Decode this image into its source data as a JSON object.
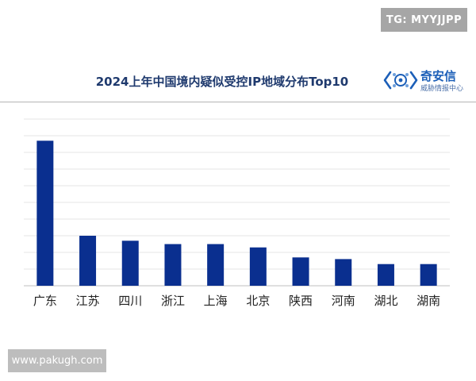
{
  "watermarks": {
    "top": "TG: MYYJJPP",
    "bottom": "www.pakugh.com"
  },
  "logo": {
    "name": "奇安信",
    "subtitle": "威胁情报中心"
  },
  "colors": {
    "bar": "#0a2f8f",
    "grid": "#e6e6e6",
    "axis": "#bfbfbf",
    "title": "#1f3a6e"
  },
  "chart_data": {
    "type": "bar",
    "title": "2024上年中国境内疑似受控IP地域分布Top10",
    "xlabel": "",
    "ylabel": "",
    "categories": [
      "广东",
      "江苏",
      "四川",
      "浙江",
      "上海",
      "北京",
      "陕西",
      "河南",
      "湖北",
      "湖南"
    ],
    "values": [
      87,
      30,
      27,
      25,
      25,
      23,
      17,
      16,
      13,
      13
    ],
    "ylim": [
      0,
      100
    ],
    "grid": true,
    "legend": "none"
  }
}
